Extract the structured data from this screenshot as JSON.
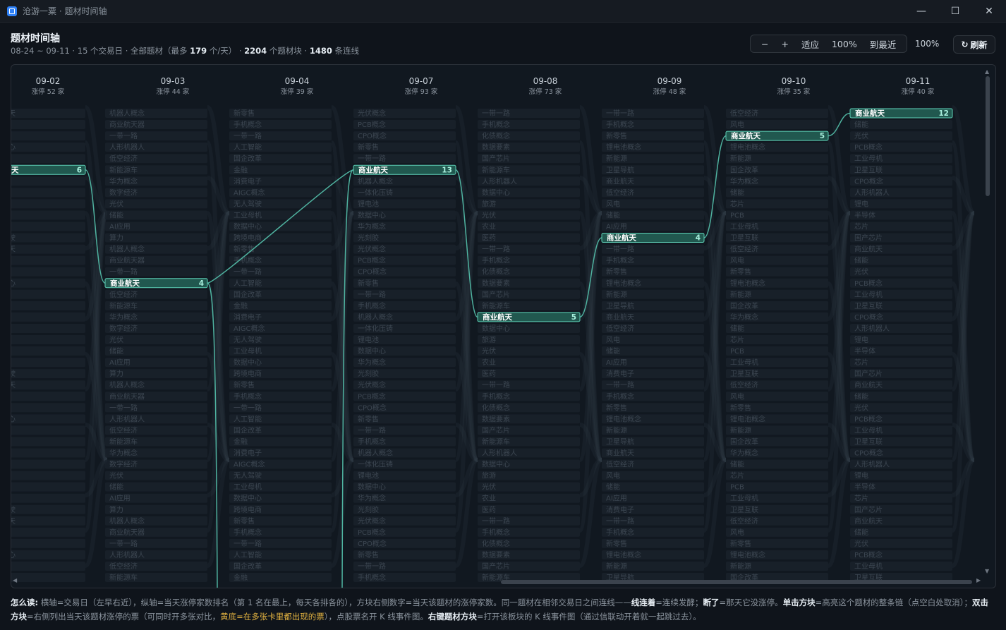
{
  "window": {
    "title": "沧游一粟 · 题材时间轴",
    "minimize": "—",
    "maximize": "☐",
    "close": "✕"
  },
  "header": {
    "title": "题材时间轴",
    "sub_range": "08-24 ~ 09-11 · 15 个交易日 · 全部题材（最多 ",
    "sub_max": "179",
    "sub_mid": " 个/天） · ",
    "sub_blocks": "2204",
    "sub_blocks_label": " 个题材块 · ",
    "sub_links": "1480",
    "sub_links_label": " 条连线"
  },
  "toolbar": {
    "zoom_out": "−",
    "zoom_in": "+",
    "fit": "适应",
    "reset": "100%",
    "latest": "到最近",
    "zoom_level": "100%",
    "refresh_icon": "↻",
    "refresh": "刷新"
  },
  "timeline": {
    "days": [
      {
        "date": "09-02",
        "count": "涨停 52 家"
      },
      {
        "date": "09-03",
        "count": "涨停 44 家"
      },
      {
        "date": "09-04",
        "count": "涨停 39 家"
      },
      {
        "date": "09-07",
        "count": "涨停 93 家"
      },
      {
        "date": "09-08",
        "count": "涨停 73 家"
      },
      {
        "date": "09-09",
        "count": "涨停 48 家"
      },
      {
        "date": "09-10",
        "count": "涨停 35 家"
      },
      {
        "date": "09-11",
        "count": "涨停 40 家"
      }
    ],
    "highlight": {
      "name": "商业航天",
      "name_clipped": "天",
      "color": "#4fb3a0",
      "points": [
        {
          "day": "09-02",
          "rank": 6,
          "value": "6"
        },
        {
          "day": "09-03",
          "rank": 16,
          "value": "4"
        },
        {
          "day": "09-07",
          "rank": 6,
          "value": "13"
        },
        {
          "day": "09-08",
          "rank": 19,
          "value": "5"
        },
        {
          "day": "09-09",
          "rank": 12,
          "value": "4"
        },
        {
          "day": "09-10",
          "rank": 3,
          "value": "5"
        },
        {
          "day": "09-11",
          "rank": 1,
          "value": "12"
        }
      ]
    },
    "dim_columns": [
      [
        "商业航天",
        "机器人",
        "芯片",
        "数据中心",
        "光伏",
        "半导体",
        "风电",
        "锂电池",
        "储能",
        "稀土",
        "AI应用",
        "无人驾驶"
      ],
      [
        "机器人概念",
        "商业航天器",
        "一带一路",
        "人形机器人",
        "低空经济",
        "新能源车",
        "华为概念",
        "数字经济",
        "光伏",
        "储能",
        "AI应用",
        "算力"
      ],
      [
        "新零售",
        "手机概念",
        "一带一路",
        "人工智能",
        "国企改革",
        "金融",
        "消费电子",
        "AIGC概念",
        "无人驾驶",
        "工业母机",
        "数据中心",
        "跨境电商"
      ],
      [
        "光伏概念",
        "PCB概念",
        "CPO概念",
        "新零售",
        "一带一路",
        "手机概念",
        "机器人概念",
        "一体化压铸",
        "锂电池",
        "数据中心",
        "华为概念",
        "光刻胶"
      ],
      [
        "一带一路",
        "手机概念",
        "化债概念",
        "数据要素",
        "国产芯片",
        "新能源车",
        "人形机器人",
        "数据中心",
        "旅游",
        "光伏",
        "农业",
        "医药"
      ],
      [
        "一带一路",
        "手机概念",
        "新零售",
        "锂电池概念",
        "新能源",
        "卫星导航",
        "商业航天",
        "低空经济",
        "风电",
        "储能",
        "AI应用",
        "消费电子"
      ],
      [
        "低空经济",
        "风电",
        "新零售",
        "锂电池概念",
        "新能源",
        "国企改革",
        "华为概念",
        "储能",
        "芯片",
        "PCB",
        "工业母机",
        "卫星互联"
      ],
      [
        "商业航天",
        "储能",
        "光伏",
        "PCB概念",
        "工业母机",
        "卫星互联",
        "CPO概念",
        "人形机器人",
        "锂电",
        "半导体",
        "芯片",
        "国产芯片"
      ]
    ]
  }
}
